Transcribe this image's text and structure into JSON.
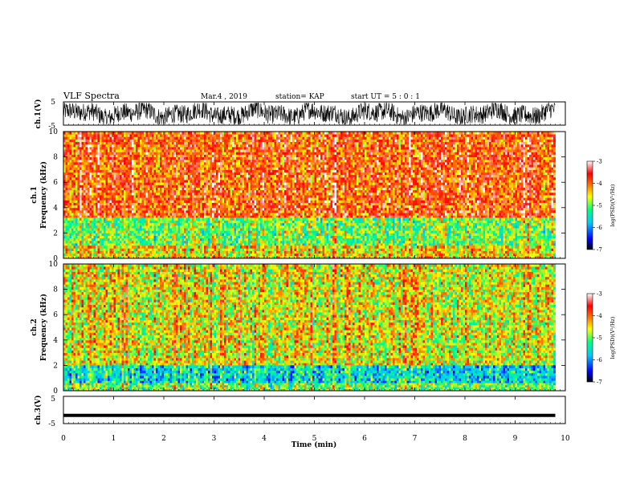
{
  "header": {
    "title": "VLF Spectra",
    "date": "Mar.4 , 2019",
    "station": "station= KAP",
    "start": "start UT = 5 : 0 : 1"
  },
  "chart_data": [
    {
      "type": "line",
      "name": "ch1-waveform",
      "ylabel": "ch.1(V)",
      "ylim": [
        -5,
        5
      ],
      "yticks": [
        "5",
        "-5"
      ],
      "xlim": [
        0,
        10
      ],
      "description_level": "dense noisy waveform mostly between -5 and 5 V"
    },
    {
      "type": "heatmap",
      "name": "ch1-spectrogram",
      "ylabel_line1": "ch.1",
      "ylabel_line2": "Frequency (kHz)",
      "ylim": [
        0,
        10
      ],
      "yticks": [
        "0",
        "2",
        "4",
        "6",
        "8",
        "10"
      ],
      "xlim": [
        0,
        10
      ],
      "bands_khz": [
        {
          "from": 3.2,
          "to": 10,
          "log_psd": -3.9
        },
        {
          "from": 1.0,
          "to": 3.2,
          "log_psd": -5.0
        },
        {
          "from": 0.0,
          "to": 1.0,
          "log_psd": -4.5
        }
      ]
    },
    {
      "type": "heatmap",
      "name": "ch2-spectrogram",
      "ylabel_line1": "ch.2",
      "ylabel_line2": "Frequency (kHz)",
      "ylim": [
        0,
        10
      ],
      "yticks": [
        "0",
        "2",
        "4",
        "6",
        "8",
        "10"
      ],
      "xlim": [
        0,
        10
      ],
      "bands_khz": [
        {
          "from": 2.0,
          "to": 10,
          "log_psd": -4.6
        },
        {
          "from": 0.6,
          "to": 2.0,
          "log_psd": -5.6
        },
        {
          "from": 0.0,
          "to": 0.6,
          "log_psd": -5.0
        }
      ]
    },
    {
      "type": "line",
      "name": "ch3-waveform",
      "ylabel": "ch.3(V)",
      "ylim": [
        -5,
        5
      ],
      "yticks": [
        "5",
        "-5"
      ],
      "xlim": [
        0,
        10
      ],
      "constant_value_v": -2
    }
  ],
  "xaxis": {
    "label": "Time (min)",
    "ticks": [
      "0",
      "1",
      "2",
      "3",
      "4",
      "5",
      "6",
      "7",
      "8",
      "9",
      "10"
    ],
    "data_end_min": 9.8
  },
  "colorbar": {
    "label": "log(PSD)(V²/Hz)",
    "ticks": [
      "-3",
      "-4",
      "-5",
      "-6",
      "-7"
    ],
    "range": [
      -7,
      -3
    ],
    "colors": [
      "#000000",
      "#0000ff",
      "#00c8ff",
      "#00ff80",
      "#ffff00",
      "#ff7f00",
      "#ff0000",
      "#ffffff"
    ]
  }
}
